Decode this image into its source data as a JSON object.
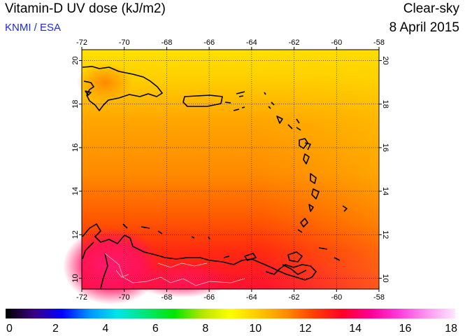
{
  "header": {
    "title": "Vitamin-D UV dose (kJ/m2)",
    "credit": "KNMI / ESA",
    "condition": "Clear-sky",
    "date": "8 April 2015"
  },
  "map": {
    "lon_range": [
      -72,
      -58
    ],
    "lat_range": [
      9.5,
      20.5
    ],
    "lon_ticks": [
      -72,
      -70,
      -68,
      -66,
      -64,
      -62,
      -60,
      -58
    ],
    "lat_ticks": [
      10,
      12,
      14,
      16,
      18,
      20
    ],
    "gridlines": true,
    "coastline_color": "#000000",
    "border_color": "#c8c8c8"
  },
  "colorbar": {
    "range": [
      0,
      18
    ],
    "ticks": [
      "0",
      "2",
      "4",
      "6",
      "8",
      "10",
      "12",
      "14",
      "16",
      "18"
    ],
    "stops": [
      "#000000",
      "#3a0080",
      "#0000ff",
      "#0096ff",
      "#00e6e6",
      "#00e673",
      "#00e600",
      "#b4e600",
      "#ffff00",
      "#ffc800",
      "#ff8c00",
      "#ff3c00",
      "#ff0028",
      "#ff0096",
      "#ff3cdc",
      "#ff96f0",
      "#ffe6ff"
    ]
  }
}
